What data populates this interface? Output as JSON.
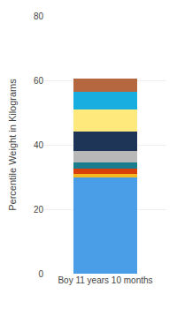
{
  "chart_data": {
    "type": "bar",
    "stacked": true,
    "categories": [
      "Boy 11 years 10 months"
    ],
    "ylabel": "Percentile Weight in Kilograms",
    "series": [
      {
        "color": "#4a9ee8",
        "values": [
          30.0
        ]
      },
      {
        "color": "#f5b820",
        "values": [
          1.0
        ]
      },
      {
        "color": "#d93f0b",
        "values": [
          1.5
        ]
      },
      {
        "color": "#1a7d8e",
        "values": [
          2.0
        ]
      },
      {
        "color": "#b8b8b8",
        "values": [
          3.5
        ]
      },
      {
        "color": "#1e3557",
        "values": [
          6.0
        ]
      },
      {
        "color": "#fde97c",
        "values": [
          7.0
        ]
      },
      {
        "color": "#18aee0",
        "values": [
          5.5
        ]
      },
      {
        "color": "#b56840",
        "values": [
          4.0
        ]
      }
    ],
    "ylim": [
      0,
      80
    ],
    "yticks": [
      0,
      20,
      40,
      60,
      80
    ],
    "grid": true
  }
}
